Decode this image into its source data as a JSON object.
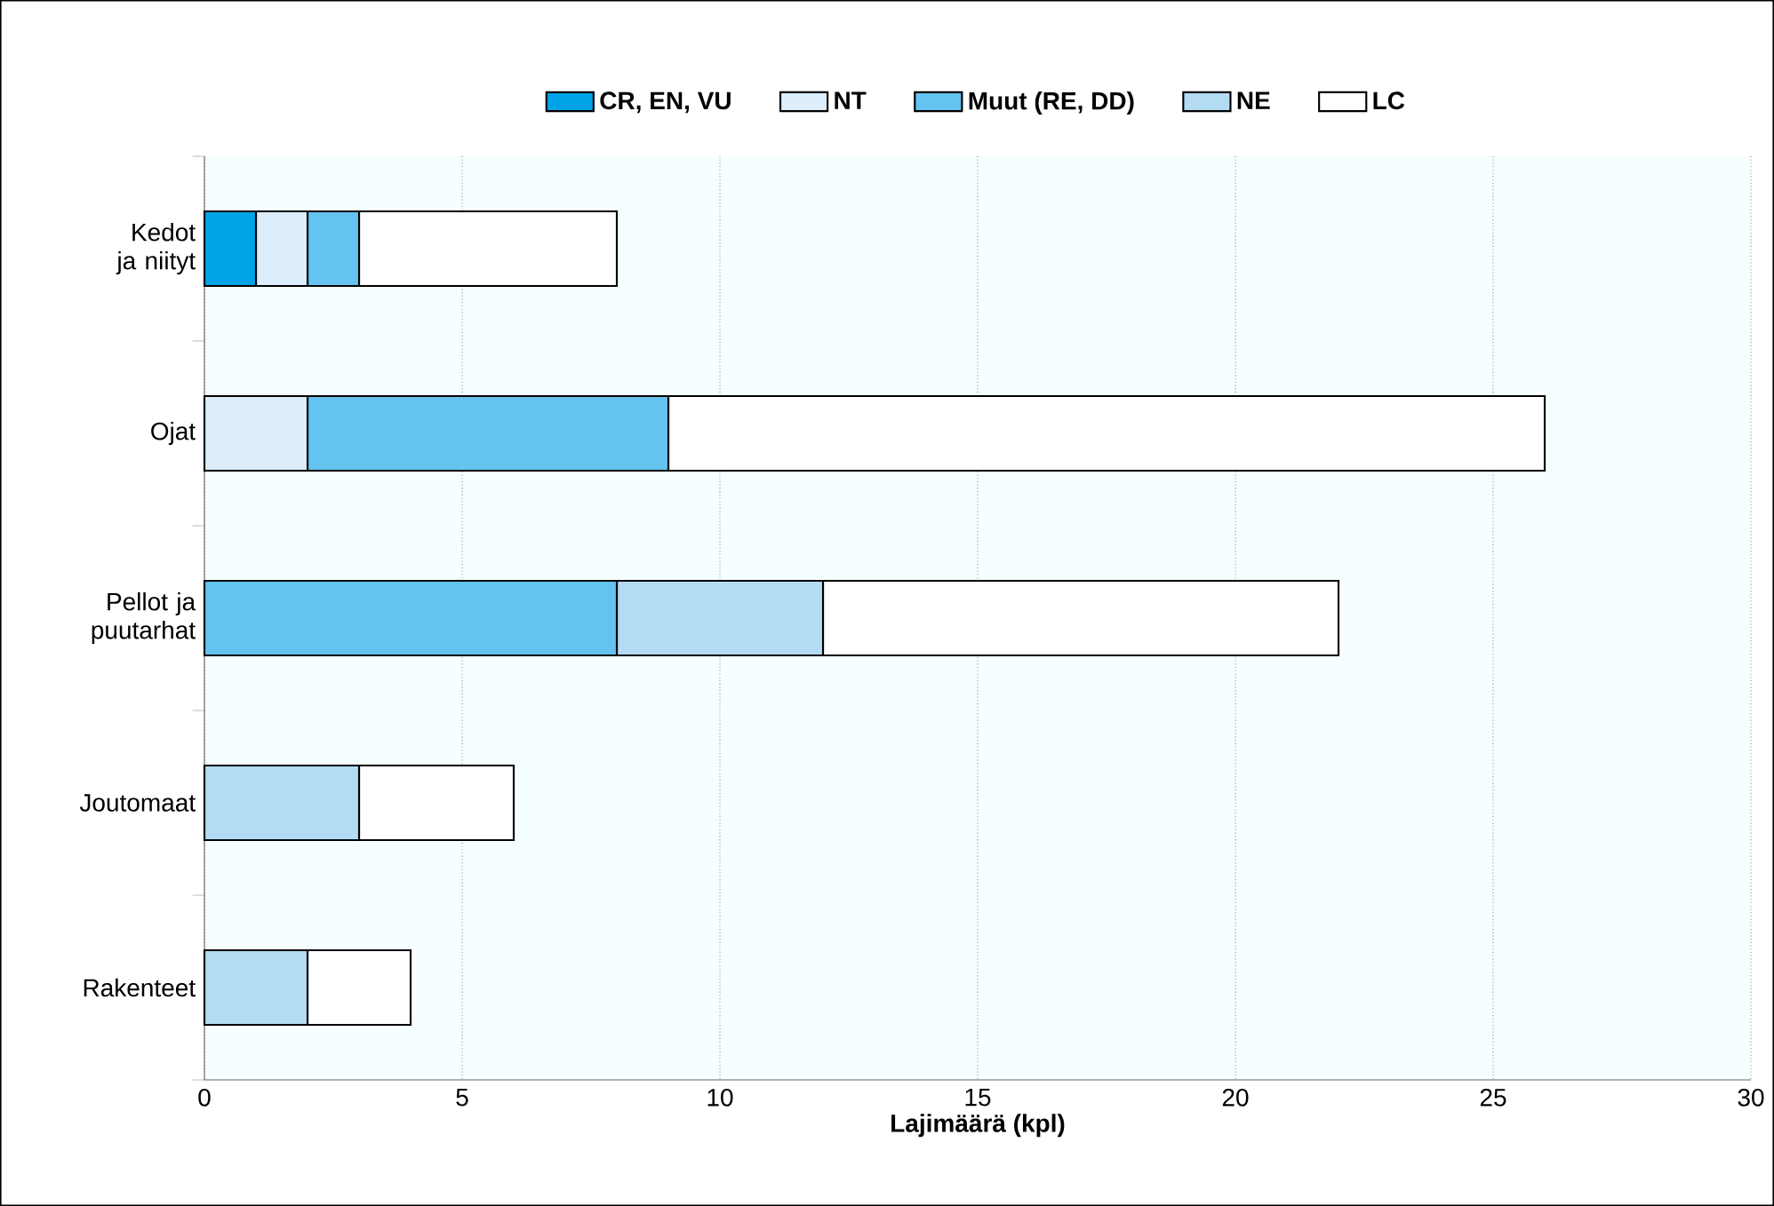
{
  "chart_data": {
    "type": "bar",
    "orientation": "horizontal",
    "stacked": true,
    "categories": [
      "Kedot ja niityt",
      "Ojat",
      "Pellot ja puutarhat",
      "Joutomaat",
      "Rakenteet"
    ],
    "series": [
      {
        "name": "CR, EN, VU",
        "color": "#00a3e6",
        "values": [
          1,
          0,
          0,
          0,
          0
        ]
      },
      {
        "name": "NT",
        "color": "#dcedfb",
        "values": [
          1,
          2,
          0,
          0,
          0
        ]
      },
      {
        "name": "Muut (RE, DD)",
        "color": "#64c3ef",
        "values": [
          1,
          7,
          8,
          0,
          0
        ]
      },
      {
        "name": "NE",
        "color": "#b3dbf4",
        "values": [
          0,
          0,
          4,
          3,
          2
        ]
      },
      {
        "name": "LC",
        "color": "#ffffff",
        "values": [
          5,
          17,
          10,
          3,
          2
        ]
      }
    ],
    "xlabel": "Lajimäärä (kpl)",
    "xlim": [
      0,
      30
    ],
    "xticks": [
      0,
      5,
      10,
      15,
      20,
      25,
      30
    ],
    "grid": "x",
    "legend": "top"
  }
}
